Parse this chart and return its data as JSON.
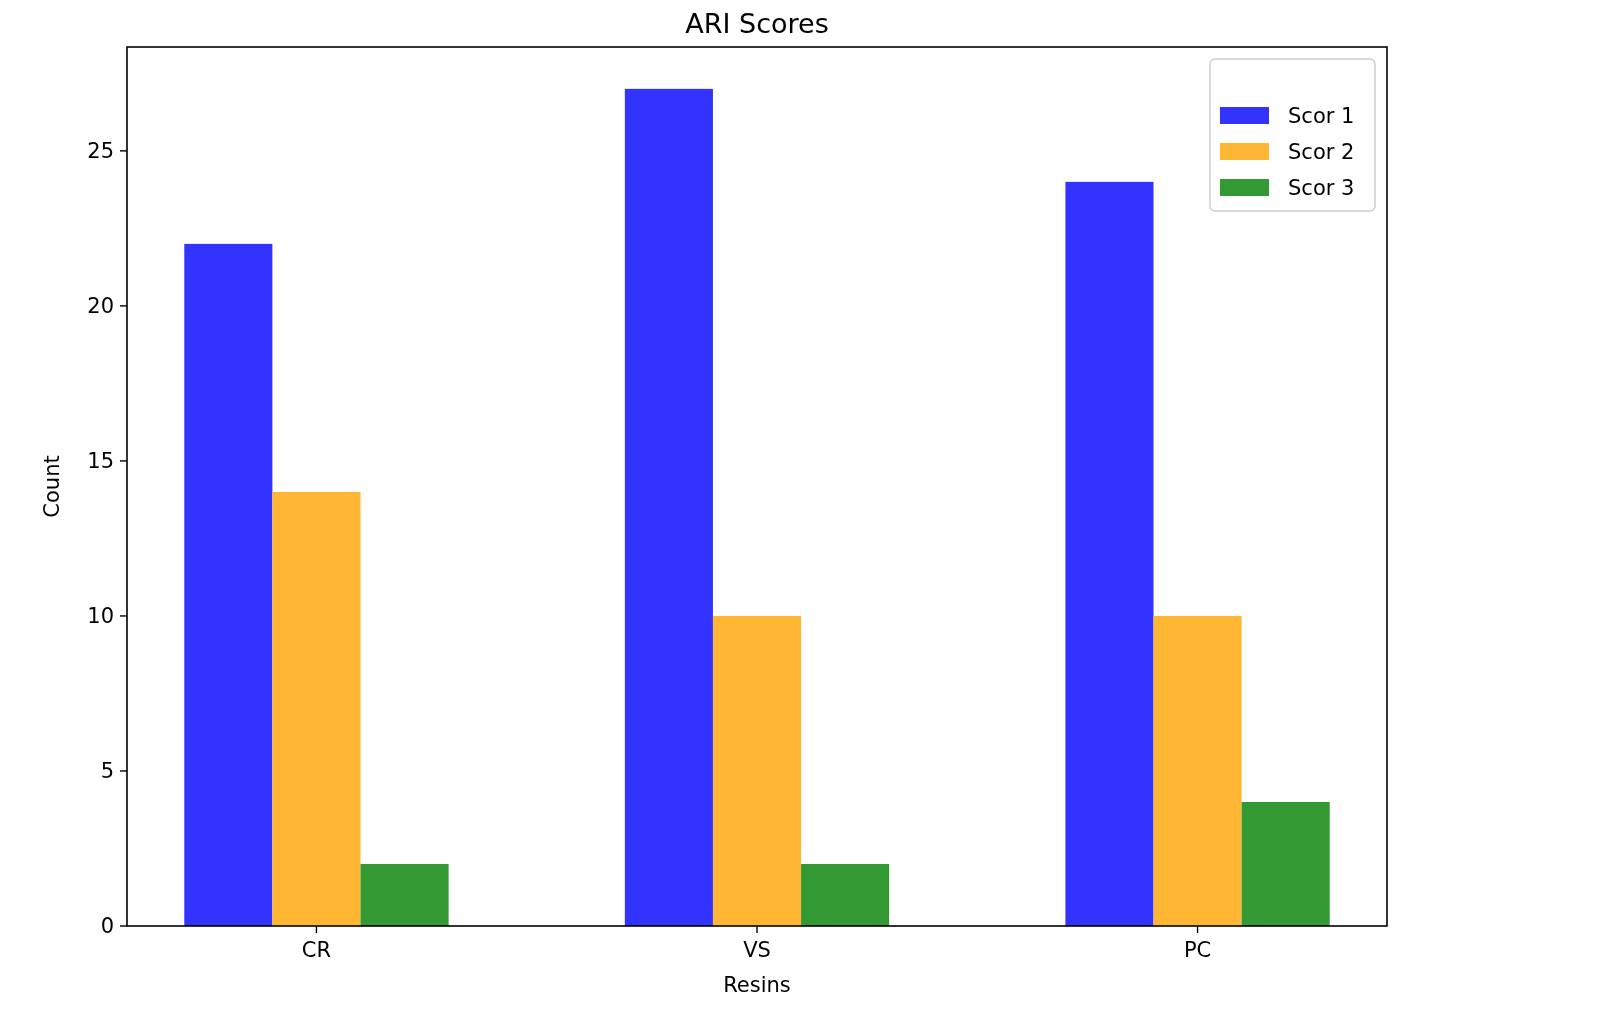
{
  "chart_data": {
    "type": "bar",
    "title": "ARI Scores",
    "xlabel": "Resins",
    "ylabel": "Count",
    "categories": [
      "CR",
      "VS",
      "PC"
    ],
    "series": [
      {
        "name": "Scor 1",
        "color": "#3333ff",
        "values": [
          22,
          27,
          24
        ]
      },
      {
        "name": "Scor 2",
        "color": "#ffb733",
        "values": [
          14,
          10,
          10
        ]
      },
      {
        "name": "Scor 3",
        "color": "#339933",
        "values": [
          2,
          2,
          4
        ]
      }
    ],
    "ylim": [
      0,
      28.35
    ],
    "yticks": [
      0,
      5,
      10,
      15,
      20,
      25
    ],
    "grid": false,
    "legend": "top right"
  }
}
